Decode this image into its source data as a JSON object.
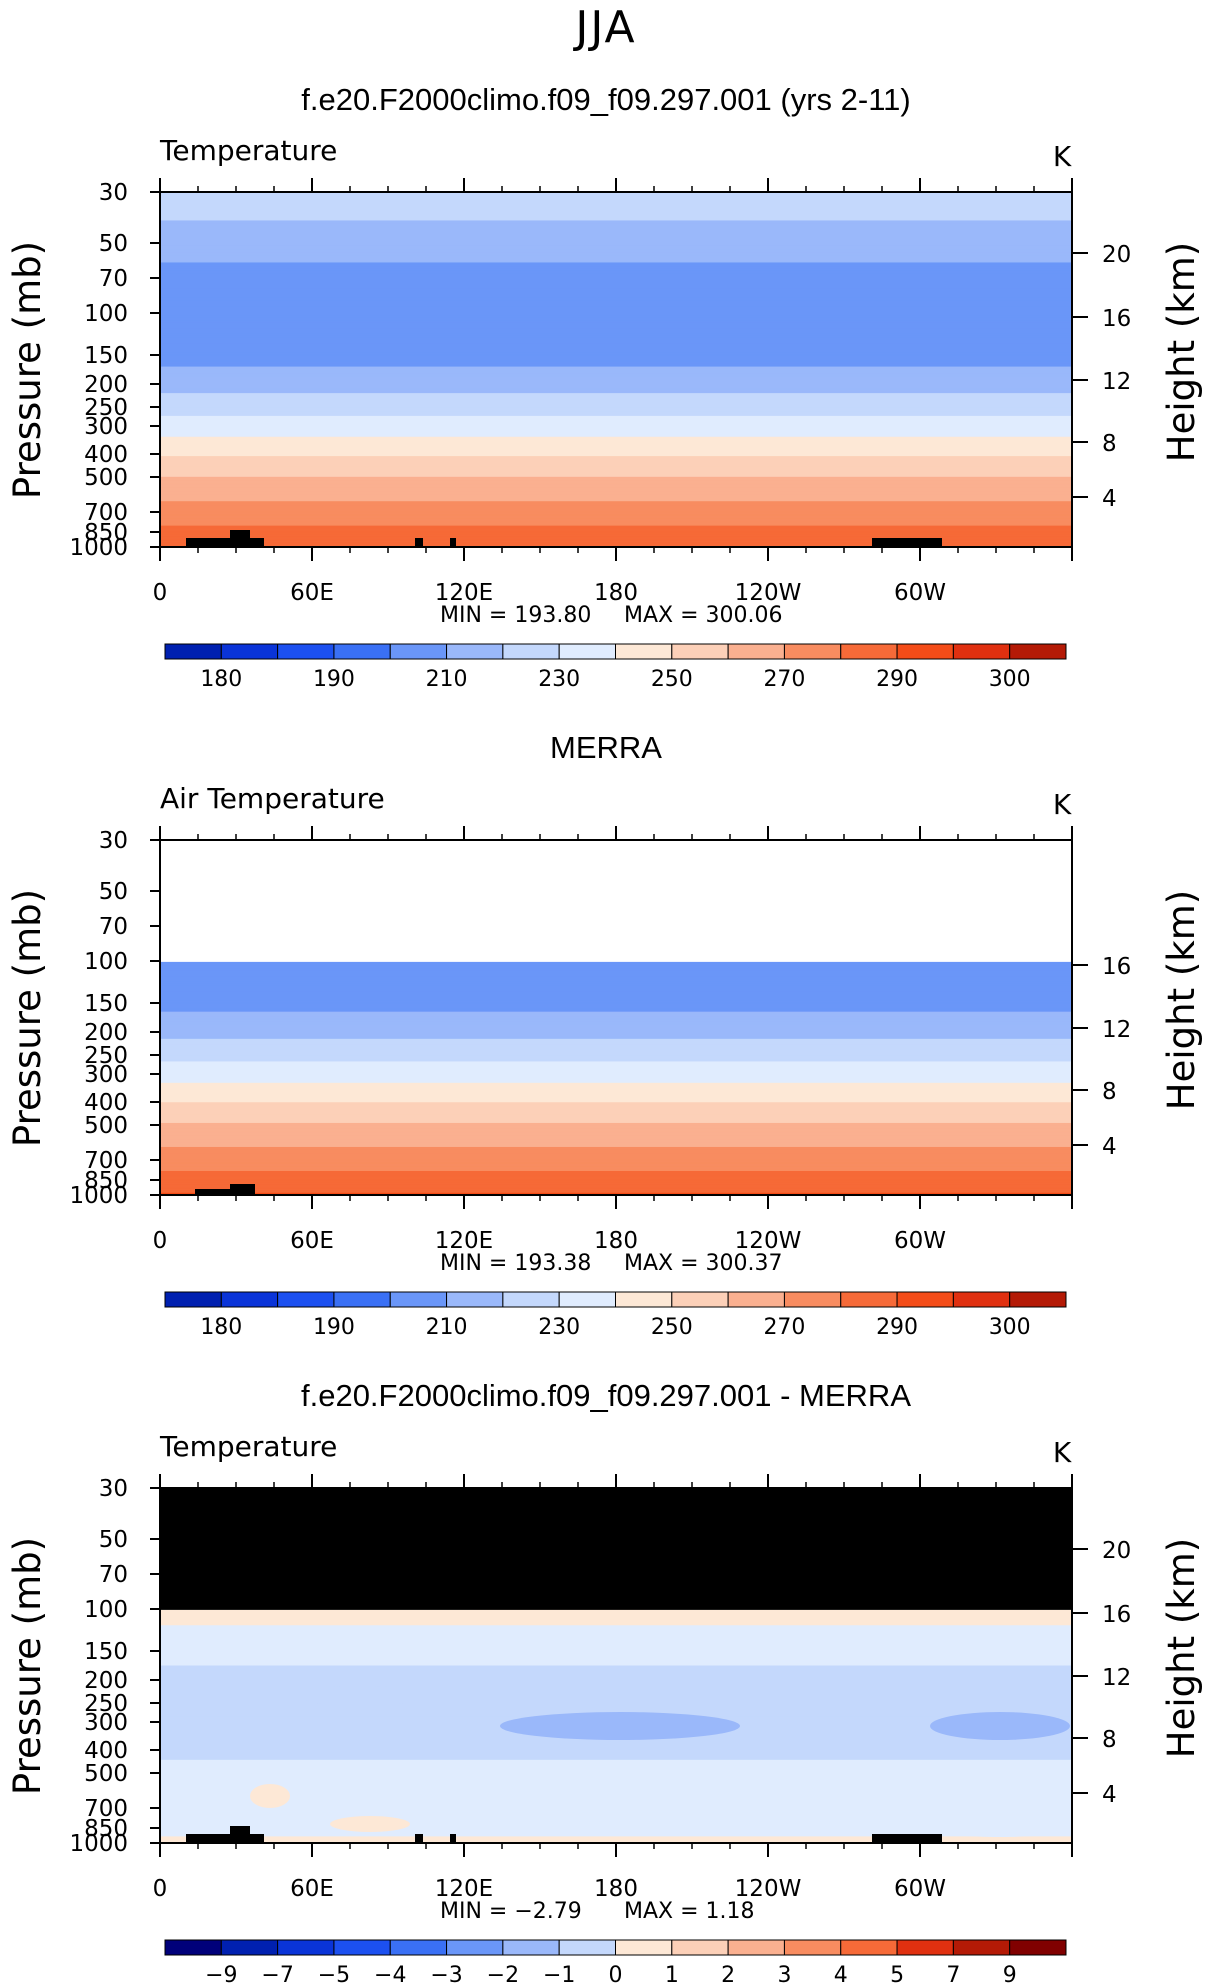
{
  "season": "JJA",
  "colors": {
    "temp_palette": [
      "#00007a",
      "#0020b0",
      "#0a34d8",
      "#1c50f0",
      "#3a70f5",
      "#6a96f8",
      "#9ab8fa",
      "#c4d8fc",
      "#e0ecfe",
      "#fde8d6",
      "#fcd0b8",
      "#fab090",
      "#f88c60",
      "#f66a38",
      "#f44c18",
      "#e03010",
      "#b41a06",
      "#800000"
    ],
    "missing": "#000000",
    "topography": "#000000"
  },
  "panels": [
    {
      "title": "f.e20.F2000climo.f09_f09.297.001 (yrs 2-11)",
      "variable": "Temperature",
      "units": "K",
      "y_axis_label": "Pressure  (mb)",
      "right_axis_label": "Height  (km)",
      "pressure_ticks": [
        "30",
        "50",
        "70",
        "100",
        "150",
        "200",
        "250",
        "300",
        "400",
        "500",
        "700",
        "850",
        "1000"
      ],
      "height_ticks": [
        "20",
        "16",
        "12",
        "8",
        "4"
      ],
      "lon_ticks": [
        "0",
        "60E",
        "120E",
        "180",
        "120W",
        "60W"
      ],
      "min_label": "MIN  =  193.80",
      "max_label": "MAX  =  300.06",
      "colorbar_labels": [
        "180",
        "190",
        "210",
        "230",
        "250",
        "270",
        "290",
        "300"
      ],
      "colorbar_boxes": 16
    },
    {
      "title": "MERRA",
      "variable": "Air Temperature",
      "units": "K",
      "y_axis_label": "Pressure  (mb)",
      "right_axis_label": "Height  (km)",
      "pressure_ticks": [
        "30",
        "50",
        "70",
        "100",
        "150",
        "200",
        "250",
        "300",
        "400",
        "500",
        "700",
        "850",
        "1000"
      ],
      "height_ticks": [
        "16",
        "12",
        "8",
        "4"
      ],
      "lon_ticks": [
        "0",
        "60E",
        "120E",
        "180",
        "120W",
        "60W"
      ],
      "min_label": "MIN  =  193.38",
      "max_label": "MAX  =  300.37",
      "colorbar_labels": [
        "180",
        "190",
        "210",
        "230",
        "250",
        "270",
        "290",
        "300"
      ],
      "colorbar_boxes": 16
    },
    {
      "title": "f.e20.F2000climo.f09_f09.297.001 - MERRA",
      "variable": "Temperature",
      "units": "K",
      "y_axis_label": "Pressure  (mb)",
      "right_axis_label": "Height  (km)",
      "pressure_ticks": [
        "30",
        "50",
        "70",
        "100",
        "150",
        "200",
        "250",
        "300",
        "400",
        "500",
        "700",
        "850",
        "1000"
      ],
      "height_ticks": [
        "20",
        "16",
        "12",
        "8",
        "4"
      ],
      "lon_ticks": [
        "0",
        "60E",
        "120E",
        "180",
        "120W",
        "60W"
      ],
      "min_label": "MIN  =    −2.79",
      "max_label": "MAX  =      1.18",
      "colorbar_labels": [
        "−9",
        "−7",
        "−5",
        "−4",
        "−3",
        "−2",
        "−1",
        "0",
        "1",
        "2",
        "3",
        "4",
        "5",
        "7",
        "9"
      ],
      "colorbar_boxes": 16
    }
  ],
  "chart_data": [
    {
      "type": "heatmap",
      "title": "f.e20.F2000climo.f09_f09.297.001 (yrs 2-11)",
      "variable": "Temperature",
      "units": "K",
      "x": [
        "0",
        "60E",
        "120E",
        "180",
        "120W",
        "60W"
      ],
      "xlim": [
        0,
        360
      ],
      "ylabel": "Pressure (mb)",
      "y_scale": "log",
      "ylim": [
        1000,
        30
      ],
      "y2label": "Height (km)",
      "pressure_levels": [
        30,
        50,
        70,
        100,
        150,
        200,
        250,
        300,
        400,
        500,
        700,
        850,
        1000
      ],
      "approx_zonal_mean_temperature_K": [
        226,
        215,
        206,
        200,
        206,
        216,
        226,
        234,
        249,
        260,
        274,
        282,
        290
      ],
      "min": 193.8,
      "max": 300.06,
      "colorbar_levels": [
        180,
        185,
        190,
        200,
        210,
        220,
        230,
        240,
        250,
        260,
        270,
        280,
        290,
        295,
        300
      ]
    },
    {
      "type": "heatmap",
      "title": "MERRA",
      "variable": "Air Temperature",
      "units": "K",
      "x": [
        "0",
        "60E",
        "120E",
        "180",
        "120W",
        "60W"
      ],
      "xlim": [
        0,
        360
      ],
      "ylabel": "Pressure (mb)",
      "y_scale": "log",
      "ylim": [
        1000,
        30
      ],
      "y2label": "Height (km)",
      "data_top_pressure": 100,
      "pressure_levels": [
        100,
        150,
        200,
        250,
        300,
        400,
        500,
        700,
        850,
        1000
      ],
      "approx_zonal_mean_temperature_K": [
        201,
        207,
        217,
        227,
        235,
        250,
        261,
        275,
        283,
        291
      ],
      "min": 193.38,
      "max": 300.37,
      "colorbar_levels": [
        180,
        185,
        190,
        200,
        210,
        220,
        230,
        240,
        250,
        260,
        270,
        280,
        290,
        295,
        300
      ]
    },
    {
      "type": "heatmap",
      "title": "f.e20.F2000climo.f09_f09.297.001 - MERRA",
      "variable": "Temperature",
      "units": "K",
      "x": [
        "0",
        "60E",
        "120E",
        "180",
        "120W",
        "60W"
      ],
      "xlim": [
        0,
        360
      ],
      "ylabel": "Pressure (mb)",
      "y_scale": "log",
      "ylim": [
        1000,
        30
      ],
      "y2label": "Height (km)",
      "missing_above_pressure": 100,
      "pressure_levels": [
        100,
        150,
        200,
        250,
        300,
        400,
        500,
        700,
        850,
        1000
      ],
      "approx_zonal_mean_difference_K": [
        0.3,
        -0.5,
        -1.5,
        -1.8,
        -2.0,
        -1.3,
        -0.6,
        -0.4,
        -0.3,
        0.2
      ],
      "min": -2.79,
      "max": 1.18,
      "colorbar_levels": [
        -9,
        -7,
        -5,
        -4,
        -3,
        -2,
        -1,
        0,
        1,
        2,
        3,
        4,
        5,
        7,
        9
      ]
    }
  ]
}
